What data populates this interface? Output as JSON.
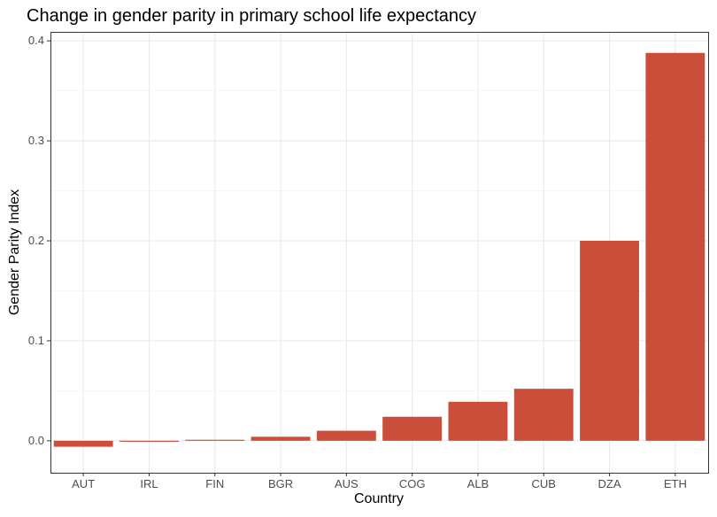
{
  "chart_data": {
    "type": "bar",
    "title": "Change in gender parity in primary school life expectancy",
    "xlabel": "Country",
    "ylabel": "Gender Parity Index",
    "categories": [
      "AUT",
      "IRL",
      "FIN",
      "BGR",
      "AUS",
      "COG",
      "ALB",
      "CUB",
      "DZA",
      "ETH"
    ],
    "values": [
      -0.006,
      -0.001,
      0.001,
      0.004,
      0.01,
      0.024,
      0.039,
      0.052,
      0.2,
      0.388
    ],
    "yticks": [
      "0.0",
      "0.1",
      "0.2",
      "0.3",
      "0.4"
    ],
    "ylim": [
      -0.032,
      0.409
    ],
    "grid": true,
    "bar_color": "#CB4E3A"
  }
}
